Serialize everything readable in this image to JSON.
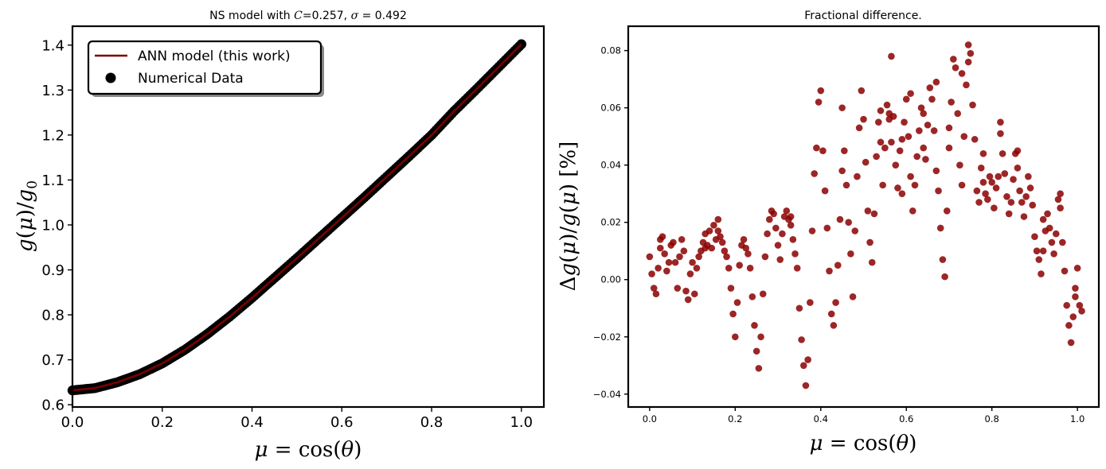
{
  "colors": {
    "line": "#7a0000",
    "scatter_left": "#000000",
    "scatter_right": "#8b0000"
  },
  "chart_data": [
    {
      "type": "line",
      "title": "NS model with C=0.257, σ = 0.492",
      "title_parts": {
        "pre": "NS model with ",
        "sym_c": "C",
        "mid": "=0.257, ",
        "sym_sigma": "σ",
        "post": " = 0.492"
      },
      "xlabel": "μ = cos(θ)",
      "ylabel": "g(μ)/g0",
      "xlabel_parts": {
        "a": "μ",
        "b": " = cos(",
        "c": "θ",
        "d": ")"
      },
      "ylabel_parts": {
        "a": "g",
        "b": "(",
        "c": "μ",
        "d": ")/",
        "e": "g",
        "f": "0"
      },
      "xlim": [
        0.0,
        1.05
      ],
      "ylim": [
        0.595,
        1.442
      ],
      "xticks": [
        0.0,
        0.2,
        0.4,
        0.6,
        0.8,
        1.0
      ],
      "xtick_labels": [
        "0.0",
        "0.2",
        "0.4",
        "0.6",
        "0.8",
        "1.0"
      ],
      "yticks": [
        0.6,
        0.7,
        0.8,
        0.9,
        1.0,
        1.1,
        1.2,
        1.3,
        1.4
      ],
      "ytick_labels": [
        "0.6",
        "0.7",
        "0.8",
        "0.9",
        "1.0",
        "1.1",
        "1.2",
        "1.3",
        "1.4"
      ],
      "legend": {
        "position": "upper-left",
        "entries": [
          "ANN model (this work)",
          "Numerical Data"
        ]
      },
      "grid": false,
      "x": [
        0.0,
        0.05,
        0.1,
        0.15,
        0.2,
        0.25,
        0.3,
        0.35,
        0.4,
        0.45,
        0.5,
        0.55,
        0.6,
        0.65,
        0.7,
        0.75,
        0.8,
        0.85,
        0.9,
        0.95,
        1.0
      ],
      "series": [
        {
          "name": "ANN model (this work)",
          "kind": "line",
          "y": [
            0.632,
            0.637,
            0.65,
            0.668,
            0.692,
            0.722,
            0.757,
            0.796,
            0.838,
            0.882,
            0.926,
            0.971,
            1.016,
            1.061,
            1.107,
            1.153,
            1.2,
            1.253,
            1.302,
            1.352,
            1.402
          ]
        },
        {
          "name": "Numerical Data",
          "kind": "scatter",
          "y": [
            0.632,
            0.637,
            0.65,
            0.668,
            0.692,
            0.722,
            0.757,
            0.796,
            0.838,
            0.882,
            0.926,
            0.971,
            1.016,
            1.061,
            1.107,
            1.153,
            1.2,
            1.253,
            1.302,
            1.352,
            1.402
          ]
        }
      ]
    },
    {
      "type": "scatter",
      "title": "Fractional difference.",
      "xlabel": "μ = cos(θ)",
      "ylabel": "Δg(μ)/g(μ) [%]",
      "xlabel_parts": {
        "a": "μ",
        "b": " = cos(",
        "c": "θ",
        "d": ")"
      },
      "ylabel_parts": {
        "a": "Δ",
        "b": "g",
        "c": "(",
        "d": "μ",
        "e": ")/",
        "f": "g",
        "g": "(",
        "h": "μ",
        "i": ")  [%]"
      },
      "xlim": [
        -0.05,
        1.05
      ],
      "ylim": [
        -0.0445,
        0.0885
      ],
      "xticks": [
        0.0,
        0.2,
        0.4,
        0.6,
        0.8,
        1.0
      ],
      "xtick_labels": [
        "0.0",
        "0.2",
        "0.4",
        "0.6",
        "0.8",
        "1.0"
      ],
      "yticks": [
        -0.04,
        -0.02,
        0.0,
        0.02,
        0.04,
        0.06,
        0.08
      ],
      "ytick_labels": [
        "−0.04",
        "−0.02",
        "0.00",
        "0.02",
        "0.04",
        "0.06",
        "0.08"
      ],
      "grid": false,
      "series": [
        {
          "name": "",
          "points": [
            [
              0.0,
              0.008
            ],
            [
              0.005,
              0.002
            ],
            [
              0.01,
              -0.003
            ],
            [
              0.015,
              -0.005
            ],
            [
              0.02,
              0.004
            ],
            [
              0.025,
              0.011
            ],
            [
              0.03,
              0.015
            ],
            [
              0.035,
              0.009
            ],
            [
              0.04,
              0.003
            ],
            [
              0.045,
              0.006
            ],
            [
              0.05,
              0.012
            ],
            [
              0.055,
              0.013
            ],
            [
              0.06,
              0.006
            ],
            [
              0.065,
              -0.003
            ],
            [
              0.07,
              0.008
            ],
            [
              0.075,
              0.014
            ],
            [
              0.08,
              0.01
            ],
            [
              0.085,
              -0.004
            ],
            [
              0.09,
              -0.007
            ],
            [
              0.095,
              0.002
            ],
            [
              0.1,
              0.006
            ],
            [
              0.105,
              -0.005
            ],
            [
              0.11,
              0.004
            ],
            [
              0.115,
              0.008
            ],
            [
              0.12,
              0.01
            ],
            [
              0.125,
              0.013
            ],
            [
              0.13,
              0.016
            ],
            [
              0.135,
              0.012
            ],
            [
              0.14,
              0.017
            ],
            [
              0.145,
              0.011
            ],
            [
              0.15,
              0.019
            ],
            [
              0.155,
              0.014
            ],
            [
              0.16,
              0.021
            ],
            [
              0.165,
              0.015
            ],
            [
              0.17,
              0.013
            ],
            [
              0.175,
              0.01
            ],
            [
              0.18,
              0.008
            ],
            [
              0.185,
              0.004
            ],
            [
              0.19,
              -0.003
            ],
            [
              0.195,
              -0.012
            ],
            [
              0.2,
              -0.02
            ],
            [
              0.205,
              -0.008
            ],
            [
              0.21,
              0.005
            ],
            [
              0.215,
              0.012
            ],
            [
              0.22,
              0.014
            ],
            [
              0.225,
              0.011
            ],
            [
              0.23,
              0.009
            ],
            [
              0.235,
              0.004
            ],
            [
              0.24,
              -0.006
            ],
            [
              0.245,
              -0.016
            ],
            [
              0.25,
              -0.025
            ],
            [
              0.255,
              -0.031
            ],
            [
              0.26,
              -0.02
            ],
            [
              0.265,
              -0.005
            ],
            [
              0.27,
              0.008
            ],
            [
              0.275,
              0.016
            ],
            [
              0.28,
              0.021
            ],
            [
              0.285,
              0.024
            ],
            [
              0.29,
              0.023
            ],
            [
              0.295,
              0.018
            ],
            [
              0.3,
              0.012
            ],
            [
              0.305,
              0.007
            ],
            [
              0.31,
              0.016
            ],
            [
              0.315,
              0.022
            ],
            [
              0.32,
              0.024
            ],
            [
              0.325,
              0.021
            ],
            [
              0.33,
              0.019
            ],
            [
              0.335,
              0.014
            ],
            [
              0.34,
              0.009
            ],
            [
              0.345,
              0.004
            ],
            [
              0.35,
              -0.01
            ],
            [
              0.355,
              -0.021
            ],
            [
              0.36,
              -0.03
            ],
            [
              0.365,
              -0.037
            ],
            [
              0.37,
              -0.028
            ],
            [
              0.375,
              -0.008
            ],
            [
              0.38,
              0.017
            ],
            [
              0.385,
              0.037
            ],
            [
              0.39,
              0.046
            ],
            [
              0.395,
              0.062
            ],
            [
              0.4,
              0.066
            ],
            [
              0.405,
              0.045
            ],
            [
              0.41,
              0.031
            ],
            [
              0.415,
              0.018
            ],
            [
              0.42,
              0.003
            ],
            [
              0.425,
              -0.012
            ],
            [
              0.43,
              -0.016
            ],
            [
              0.435,
              -0.008
            ],
            [
              0.44,
              0.005
            ],
            [
              0.445,
              0.021
            ],
            [
              0.45,
              0.038
            ],
            [
              0.455,
              0.045
            ],
            [
              0.46,
              0.033
            ],
            [
              0.465,
              0.02
            ],
            [
              0.47,
              0.009
            ],
            [
              0.475,
              -0.006
            ],
            [
              0.48,
              0.017
            ],
            [
              0.485,
              0.036
            ],
            [
              0.49,
              0.053
            ],
            [
              0.495,
              0.066
            ],
            [
              0.5,
              0.056
            ],
            [
              0.505,
              0.041
            ],
            [
              0.51,
              0.024
            ],
            [
              0.515,
              0.013
            ],
            [
              0.52,
              0.006
            ],
            [
              0.525,
              0.023
            ],
            [
              0.53,
              0.043
            ],
            [
              0.535,
              0.055
            ],
            [
              0.54,
              0.048
            ],
            [
              0.545,
              0.033
            ],
            [
              0.55,
              0.046
            ],
            [
              0.555,
              0.061
            ],
            [
              0.56,
              0.058
            ],
            [
              0.565,
              0.048
            ],
            [
              0.57,
              0.057
            ],
            [
              0.575,
              0.04
            ],
            [
              0.58,
              0.032
            ],
            [
              0.585,
              0.045
            ],
            [
              0.59,
              0.03
            ],
            [
              0.595,
              0.055
            ],
            [
              0.6,
              0.063
            ],
            [
              0.605,
              0.05
            ],
            [
              0.61,
              0.036
            ],
            [
              0.615,
              0.024
            ],
            [
              0.62,
              0.033
            ],
            [
              0.625,
              0.043
            ],
            [
              0.63,
              0.052
            ],
            [
              0.635,
              0.06
            ],
            [
              0.64,
              0.046
            ],
            [
              0.645,
              0.042
            ],
            [
              0.65,
              0.054
            ],
            [
              0.655,
              0.067
            ],
            [
              0.66,
              0.063
            ],
            [
              0.665,
              0.052
            ],
            [
              0.67,
              0.038
            ],
            [
              0.675,
              0.031
            ],
            [
              0.68,
              0.018
            ],
            [
              0.685,
              0.007
            ],
            [
              0.69,
              0.001
            ],
            [
              0.695,
              0.024
            ],
            [
              0.7,
              0.046
            ],
            [
              0.705,
              0.062
            ],
            [
              0.71,
              0.077
            ],
            [
              0.715,
              0.074
            ],
            [
              0.72,
              0.058
            ],
            [
              0.725,
              0.04
            ],
            [
              0.73,
              0.033
            ],
            [
              0.735,
              0.05
            ],
            [
              0.74,
              0.068
            ],
            [
              0.745,
              0.076
            ],
            [
              0.75,
              0.079
            ],
            [
              0.755,
              0.061
            ],
            [
              0.76,
              0.049
            ],
            [
              0.765,
              0.031
            ],
            [
              0.77,
              0.027
            ],
            [
              0.775,
              0.039
            ],
            [
              0.78,
              0.034
            ],
            [
              0.785,
              0.03
            ],
            [
              0.79,
              0.028
            ],
            [
              0.795,
              0.036
            ],
            [
              0.8,
              0.034
            ],
            [
              0.805,
              0.025
            ],
            [
              0.81,
              0.032
            ],
            [
              0.815,
              0.036
            ],
            [
              0.82,
              0.051
            ],
            [
              0.825,
              0.044
            ],
            [
              0.83,
              0.037
            ],
            [
              0.835,
              0.029
            ],
            [
              0.84,
              0.023
            ],
            [
              0.845,
              0.027
            ],
            [
              0.85,
              0.035
            ],
            [
              0.855,
              0.044
            ],
            [
              0.86,
              0.039
            ],
            [
              0.865,
              0.031
            ],
            [
              0.87,
              0.027
            ],
            [
              0.875,
              0.022
            ],
            [
              0.88,
              0.029
            ],
            [
              0.885,
              0.036
            ],
            [
              0.89,
              0.032
            ],
            [
              0.895,
              0.026
            ],
            [
              0.9,
              0.015
            ],
            [
              0.905,
              0.01
            ],
            [
              0.91,
              0.007
            ],
            [
              0.915,
              0.002
            ],
            [
              0.92,
              0.01
            ],
            [
              0.925,
              0.017
            ],
            [
              0.93,
              0.023
            ],
            [
              0.935,
              0.018
            ],
            [
              0.94,
              0.013
            ],
            [
              0.945,
              0.009
            ],
            [
              0.95,
              0.016
            ],
            [
              0.955,
              0.028
            ],
            [
              0.96,
              0.025
            ],
            [
              0.965,
              0.013
            ],
            [
              0.97,
              0.003
            ],
            [
              0.975,
              -0.009
            ],
            [
              0.98,
              -0.016
            ],
            [
              0.985,
              -0.022
            ],
            [
              0.99,
              -0.013
            ],
            [
              0.995,
              -0.003
            ],
            [
              1.0,
              0.004
            ],
            [
              1.005,
              -0.009
            ],
            [
              1.01,
              -0.011
            ],
            [
              0.025,
              0.014
            ],
            [
              0.13,
              0.011
            ],
            [
              0.16,
              0.017
            ],
            [
              0.33,
              0.022
            ],
            [
              0.45,
              0.06
            ],
            [
              0.56,
              0.056
            ],
            [
              0.59,
              0.049
            ],
            [
              0.64,
              0.058
            ],
            [
              0.7,
              0.053
            ],
            [
              0.73,
              0.072
            ],
            [
              0.78,
              0.044
            ],
            [
              0.82,
              0.055
            ],
            [
              0.86,
              0.045
            ],
            [
              0.92,
              0.021
            ],
            [
              0.96,
              0.03
            ],
            [
              0.995,
              -0.006
            ],
            [
              0.54,
              0.059
            ],
            [
              0.61,
              0.065
            ],
            [
              0.67,
              0.069
            ],
            [
              0.745,
              0.082
            ],
            [
              0.565,
              0.078
            ]
          ]
        }
      ]
    }
  ]
}
